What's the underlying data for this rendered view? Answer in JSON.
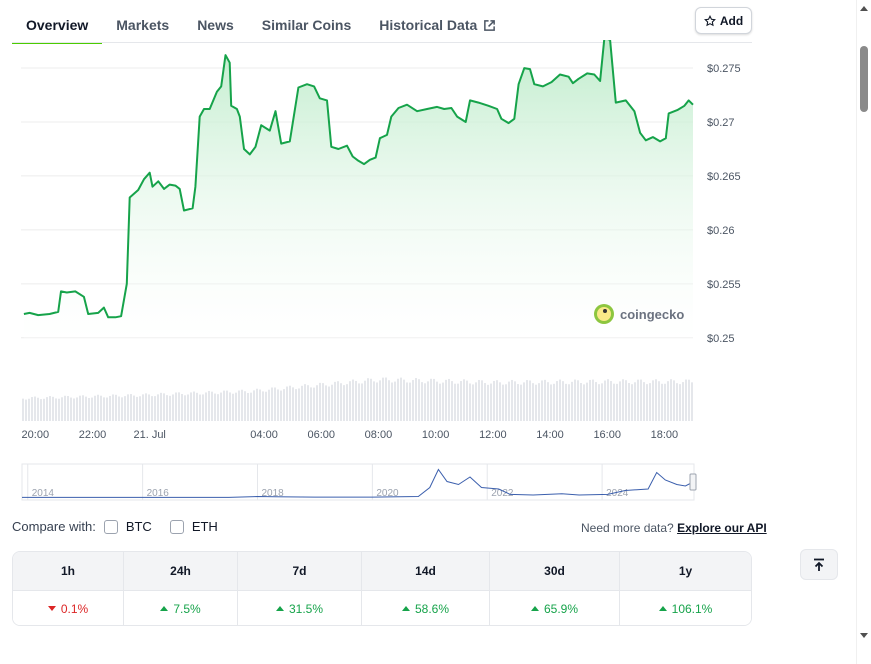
{
  "tabs": [
    {
      "label": "Overview",
      "active": true
    },
    {
      "label": "Markets",
      "active": false
    },
    {
      "label": "News",
      "active": false
    },
    {
      "label": "Similar Coins",
      "active": false
    },
    {
      "label": "Historical Data",
      "active": false,
      "external": true
    }
  ],
  "add_button": {
    "label": "Add",
    "icon": "star-icon"
  },
  "watermark": {
    "text": "coingecko"
  },
  "compare": {
    "label": "Compare with:",
    "options": [
      {
        "label": "BTC",
        "checked": false
      },
      {
        "label": "ETH",
        "checked": false
      }
    ]
  },
  "api": {
    "prompt": "Need more data?",
    "link": "Explore our API"
  },
  "performance": {
    "headers": [
      "1h",
      "24h",
      "7d",
      "14d",
      "30d",
      "1y"
    ],
    "values": [
      {
        "text": "0.1%",
        "direction": "down"
      },
      {
        "text": "7.5%",
        "direction": "up"
      },
      {
        "text": "31.5%",
        "direction": "up"
      },
      {
        "text": "58.6%",
        "direction": "up"
      },
      {
        "text": "65.9%",
        "direction": "up"
      },
      {
        "text": "106.1%",
        "direction": "up"
      }
    ]
  },
  "colors": {
    "line": "#16a34a",
    "accent": "#4bcc00",
    "up": "#16a34a",
    "down": "#dc2626",
    "nav_line": "#3b5fad"
  },
  "chart_data": {
    "type": "line",
    "title": "",
    "xlabel": "",
    "ylabel": "",
    "ylim": [
      0.2497,
      0.2776
    ],
    "y_ticks": [
      0.25,
      0.255,
      0.26,
      0.265,
      0.27,
      0.275
    ],
    "y_tick_labels": [
      "$0.25",
      "$0.255",
      "$0.26",
      "$0.265",
      "$0.27",
      "$0.275"
    ],
    "x_range_hours": [
      -4.5,
      19.0
    ],
    "x_ticks": [
      {
        "hour": -4,
        "label": "20:00"
      },
      {
        "hour": -2,
        "label": "22:00"
      },
      {
        "hour": 0,
        "label": "21. Jul"
      },
      {
        "hour": 4,
        "label": "04:00"
      },
      {
        "hour": 6,
        "label": "06:00"
      },
      {
        "hour": 8,
        "label": "08:00"
      },
      {
        "hour": 10,
        "label": "10:00"
      },
      {
        "hour": 12,
        "label": "12:00"
      },
      {
        "hour": 14,
        "label": "14:00"
      },
      {
        "hour": 16,
        "label": "16:00"
      },
      {
        "hour": 18,
        "label": "18:00"
      }
    ],
    "series": [
      {
        "name": "",
        "points": [
          [
            -4.4,
            0.2522
          ],
          [
            -4.2,
            0.2523
          ],
          [
            -3.9,
            0.2521
          ],
          [
            -3.5,
            0.2522
          ],
          [
            -3.2,
            0.2524
          ],
          [
            -3.1,
            0.2543
          ],
          [
            -2.9,
            0.2542
          ],
          [
            -2.6,
            0.2543
          ],
          [
            -2.3,
            0.2538
          ],
          [
            -2.15,
            0.2522
          ],
          [
            -1.8,
            0.2523
          ],
          [
            -1.6,
            0.2528
          ],
          [
            -1.45,
            0.2519
          ],
          [
            -1.2,
            0.2519
          ],
          [
            -1.0,
            0.252
          ],
          [
            -0.8,
            0.255
          ],
          [
            -0.7,
            0.263
          ],
          [
            -0.4,
            0.2637
          ],
          [
            -0.2,
            0.2647
          ],
          [
            0.0,
            0.2653
          ],
          [
            0.1,
            0.264
          ],
          [
            0.3,
            0.2645
          ],
          [
            0.5,
            0.2638
          ],
          [
            0.7,
            0.2642
          ],
          [
            0.9,
            0.2641
          ],
          [
            1.05,
            0.2638
          ],
          [
            1.2,
            0.2618
          ],
          [
            1.5,
            0.262
          ],
          [
            1.6,
            0.264
          ],
          [
            1.75,
            0.2705
          ],
          [
            1.9,
            0.2712
          ],
          [
            2.1,
            0.2712
          ],
          [
            2.35,
            0.2728
          ],
          [
            2.5,
            0.2733
          ],
          [
            2.65,
            0.2762
          ],
          [
            2.8,
            0.2755
          ],
          [
            2.85,
            0.2715
          ],
          [
            3.05,
            0.2712
          ],
          [
            3.15,
            0.2705
          ],
          [
            3.3,
            0.2675
          ],
          [
            3.5,
            0.267
          ],
          [
            3.7,
            0.2677
          ],
          [
            3.9,
            0.2697
          ],
          [
            4.2,
            0.2692
          ],
          [
            4.4,
            0.271
          ],
          [
            4.6,
            0.268
          ],
          [
            4.9,
            0.2682
          ],
          [
            5.2,
            0.2732
          ],
          [
            5.5,
            0.2735
          ],
          [
            5.75,
            0.2733
          ],
          [
            5.95,
            0.2722
          ],
          [
            6.2,
            0.272
          ],
          [
            6.35,
            0.2677
          ],
          [
            6.6,
            0.2675
          ],
          [
            6.9,
            0.2678
          ],
          [
            7.1,
            0.2668
          ],
          [
            7.3,
            0.2664
          ],
          [
            7.5,
            0.2661
          ],
          [
            7.7,
            0.2665
          ],
          [
            7.9,
            0.2667
          ],
          [
            8.05,
            0.2685
          ],
          [
            8.3,
            0.2688
          ],
          [
            8.45,
            0.2705
          ],
          [
            8.7,
            0.2713
          ],
          [
            9.0,
            0.2716
          ],
          [
            9.35,
            0.271
          ],
          [
            9.7,
            0.2712
          ],
          [
            10.05,
            0.2714
          ],
          [
            10.3,
            0.2712
          ],
          [
            10.55,
            0.2713
          ],
          [
            10.75,
            0.2705
          ],
          [
            11.05,
            0.27
          ],
          [
            11.2,
            0.272
          ],
          [
            11.5,
            0.2718
          ],
          [
            11.85,
            0.2715
          ],
          [
            12.15,
            0.2712
          ],
          [
            12.3,
            0.2703
          ],
          [
            12.55,
            0.2699
          ],
          [
            12.75,
            0.2703
          ],
          [
            12.9,
            0.2735
          ],
          [
            13.1,
            0.275
          ],
          [
            13.3,
            0.2749
          ],
          [
            13.45,
            0.2735
          ],
          [
            13.75,
            0.2733
          ],
          [
            14.05,
            0.2737
          ],
          [
            14.35,
            0.2744
          ],
          [
            14.65,
            0.2742
          ],
          [
            14.8,
            0.2736
          ],
          [
            15.0,
            0.274
          ],
          [
            15.3,
            0.2745
          ],
          [
            15.55,
            0.2744
          ],
          [
            15.75,
            0.2738
          ],
          [
            15.9,
            0.2778
          ],
          [
            16.1,
            0.2776
          ],
          [
            16.3,
            0.2718
          ],
          [
            16.65,
            0.272
          ],
          [
            16.95,
            0.271
          ],
          [
            17.15,
            0.269
          ],
          [
            17.35,
            0.2683
          ],
          [
            17.6,
            0.2686
          ],
          [
            17.85,
            0.2682
          ],
          [
            18.05,
            0.2685
          ],
          [
            18.15,
            0.2708
          ],
          [
            18.45,
            0.2711
          ],
          [
            18.7,
            0.2715
          ],
          [
            18.85,
            0.272
          ],
          [
            19.0,
            0.2716
          ]
        ]
      }
    ],
    "volume": {
      "min_fraction": 0.55,
      "segments": [
        [
          -4.5,
          0.55
        ],
        [
          -0.5,
          0.62
        ],
        [
          3.5,
          0.72
        ],
        [
          8.0,
          1.0
        ],
        [
          12.0,
          0.93
        ],
        [
          16.0,
          0.95
        ],
        [
          19.0,
          0.95
        ]
      ]
    },
    "navigator": {
      "x_ticks": [
        "2014",
        "2016",
        "2018",
        "2020",
        "2022",
        "2024"
      ],
      "x_range_years": [
        2013.9,
        2025.6
      ],
      "y_range": [
        0,
        1
      ],
      "points": [
        [
          2013.9,
          0.02
        ],
        [
          2016.0,
          0.02
        ],
        [
          2017.5,
          0.02
        ],
        [
          2018.0,
          0.05
        ],
        [
          2018.3,
          0.04
        ],
        [
          2019.0,
          0.03
        ],
        [
          2020.0,
          0.03
        ],
        [
          2020.8,
          0.05
        ],
        [
          2021.0,
          0.35
        ],
        [
          2021.15,
          0.95
        ],
        [
          2021.3,
          0.55
        ],
        [
          2021.5,
          0.45
        ],
        [
          2021.7,
          0.7
        ],
        [
          2021.9,
          0.35
        ],
        [
          2022.2,
          0.3
        ],
        [
          2022.4,
          0.12
        ],
        [
          2022.8,
          0.1
        ],
        [
          2023.3,
          0.14
        ],
        [
          2023.6,
          0.1
        ],
        [
          2024.1,
          0.12
        ],
        [
          2024.4,
          0.25
        ],
        [
          2024.8,
          0.3
        ],
        [
          2024.95,
          0.85
        ],
        [
          2025.1,
          0.6
        ],
        [
          2025.3,
          0.45
        ],
        [
          2025.45,
          0.4
        ],
        [
          2025.6,
          0.55
        ]
      ]
    }
  }
}
